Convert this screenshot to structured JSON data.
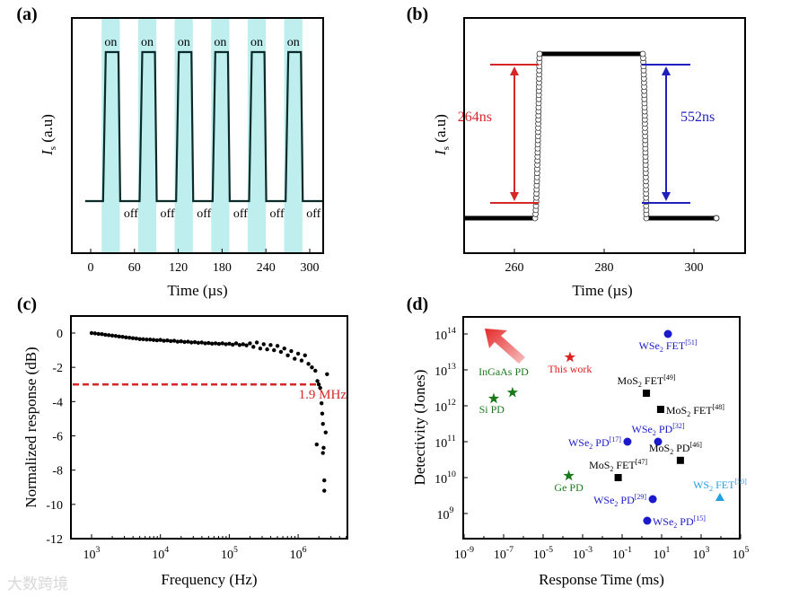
{
  "watermark": "大数跨境",
  "chart_data": [
    {
      "panel": "(a)",
      "type": "line",
      "xlabel": "Time (µs)",
      "ylabel_main": "I",
      "ylabel_sub": "s",
      "ylabel_unit": " (a.u)",
      "xlim": [
        -10,
        320
      ],
      "xticks": [
        0,
        60,
        120,
        180,
        240,
        300
      ],
      "pulses": [
        {
          "on": 17,
          "off": 38
        },
        {
          "on": 67,
          "off": 88
        },
        {
          "on": 117,
          "off": 138
        },
        {
          "on": 167,
          "off": 188
        },
        {
          "on": 217,
          "off": 238
        },
        {
          "on": 267,
          "off": 288
        }
      ],
      "highlight_bands": [
        [
          15,
          40
        ],
        [
          65,
          90
        ],
        [
          115,
          140
        ],
        [
          165,
          190
        ],
        [
          215,
          240
        ],
        [
          265,
          290
        ]
      ],
      "on_label": "on",
      "off_label": "off",
      "band_color": "#bfeeee"
    },
    {
      "panel": "(b)",
      "type": "scatter",
      "xlabel": "Time (µs)",
      "ylabel_main": "I",
      "ylabel_sub": "s",
      "ylabel_unit": " (a.u)",
      "xlim": [
        249.5,
        306
      ],
      "xticks": [
        260,
        280,
        300
      ],
      "rise": {
        "start": 264.6,
        "end": 265.6
      },
      "fall": {
        "start": 288.6,
        "end": 289.4
      },
      "end_time": 305,
      "rise_label": "264ns",
      "fall_label": "552ns",
      "rise_color": "#d62728",
      "fall_color": "#1f1fbf"
    },
    {
      "panel": "(c)",
      "type": "scatter",
      "xlabel": "Frequency (Hz)",
      "ylabel": "Normalized response (dB)",
      "xlim_log10": [
        2.7,
        6.7
      ],
      "ylim": [
        -12,
        1
      ],
      "xticks_exp": [
        3,
        4,
        5,
        6
      ],
      "yticks": [
        0,
        -2,
        -4,
        -6,
        -8,
        -10,
        -12
      ],
      "cutoff_db": -3,
      "cutoff_label": "1.9 MHz",
      "cutoff_color": "#d62728",
      "points": [
        [
          3.0,
          0
        ],
        [
          3.05,
          -0.02
        ],
        [
          3.1,
          -0.05
        ],
        [
          3.15,
          -0.06
        ],
        [
          3.2,
          -0.1
        ],
        [
          3.25,
          -0.12
        ],
        [
          3.3,
          -0.15
        ],
        [
          3.35,
          -0.17
        ],
        [
          3.4,
          -0.2
        ],
        [
          3.45,
          -0.22
        ],
        [
          3.5,
          -0.25
        ],
        [
          3.55,
          -0.27
        ],
        [
          3.6,
          -0.3
        ],
        [
          3.65,
          -0.32
        ],
        [
          3.7,
          -0.35
        ],
        [
          3.75,
          -0.36
        ],
        [
          3.8,
          -0.38
        ],
        [
          3.85,
          -0.38
        ],
        [
          3.9,
          -0.4
        ],
        [
          3.95,
          -0.42
        ],
        [
          4.0,
          -0.4
        ],
        [
          4.05,
          -0.45
        ],
        [
          4.1,
          -0.43
        ],
        [
          4.15,
          -0.47
        ],
        [
          4.2,
          -0.45
        ],
        [
          4.25,
          -0.5
        ],
        [
          4.3,
          -0.48
        ],
        [
          4.35,
          -0.52
        ],
        [
          4.4,
          -0.5
        ],
        [
          4.45,
          -0.55
        ],
        [
          4.5,
          -0.53
        ],
        [
          4.55,
          -0.57
        ],
        [
          4.6,
          -0.55
        ],
        [
          4.65,
          -0.6
        ],
        [
          4.7,
          -0.58
        ],
        [
          4.75,
          -0.62
        ],
        [
          4.8,
          -0.6
        ],
        [
          4.85,
          -0.63
        ],
        [
          4.9,
          -0.6
        ],
        [
          4.95,
          -0.65
        ],
        [
          5.0,
          -0.62
        ],
        [
          5.05,
          -0.68
        ],
        [
          5.1,
          -0.6
        ],
        [
          5.15,
          -0.7
        ],
        [
          5.2,
          -0.65
        ],
        [
          5.25,
          -0.72
        ],
        [
          5.3,
          -0.6
        ],
        [
          5.35,
          -0.8
        ],
        [
          5.4,
          -0.55
        ],
        [
          5.45,
          -0.9
        ],
        [
          5.5,
          -0.65
        ],
        [
          5.55,
          -0.95
        ],
        [
          5.6,
          -0.7
        ],
        [
          5.65,
          -1.0
        ],
        [
          5.7,
          -0.75
        ],
        [
          5.75,
          -1.1
        ],
        [
          5.8,
          -0.9
        ],
        [
          5.85,
          -1.3
        ],
        [
          5.9,
          -1.05
        ],
        [
          5.95,
          -1.5
        ],
        [
          6.0,
          -1.2
        ],
        [
          6.05,
          -1.6
        ],
        [
          6.1,
          -1.3
        ],
        [
          6.15,
          -1.8
        ],
        [
          6.2,
          -2.0
        ],
        [
          6.25,
          -2.2
        ],
        [
          6.28,
          -2.8
        ],
        [
          6.3,
          -3.0
        ],
        [
          6.32,
          -3.2
        ],
        [
          6.34,
          -4.1
        ],
        [
          6.35,
          -4.7
        ],
        [
          6.36,
          -5.3
        ],
        [
          6.27,
          -6.5
        ],
        [
          6.37,
          -6.7
        ],
        [
          6.36,
          -7.0
        ],
        [
          6.38,
          -8.6
        ],
        [
          6.38,
          -9.2
        ],
        [
          6.4,
          -5.8
        ],
        [
          6.42,
          -2.4
        ]
      ]
    },
    {
      "panel": "(d)",
      "type": "scatter",
      "xlabel": "Response Time (ms)",
      "ylabel": "Detectivity (Jones)",
      "xlim_log10": [
        -9,
        5
      ],
      "ylim_log10": [
        8.5,
        14.4
      ],
      "xticks_exp": [
        -9,
        -7,
        -5,
        -3,
        -1,
        1,
        3,
        5
      ],
      "yticks_exp": [
        9,
        10,
        11,
        12,
        13,
        14
      ],
      "points": [
        {
          "name": "Si PD",
          "ref": "",
          "x": -7.5,
          "y": 12.2,
          "marker": "star",
          "color": "#1a7a1a",
          "label_pos": "below"
        },
        {
          "name": "InGaAs PD",
          "ref": "",
          "x": -6.55,
          "y": 12.37,
          "marker": "star",
          "color": "#1a7a1a",
          "label_pos": "above"
        },
        {
          "name": "This work",
          "ref": "",
          "x": -3.64,
          "y": 13.35,
          "marker": "star",
          "color": "#e0201e",
          "label_pos": "below"
        },
        {
          "name": "Ge PD",
          "ref": "",
          "x": -3.7,
          "y": 10.05,
          "marker": "star",
          "color": "#1a7a1a",
          "label_pos": "below"
        },
        {
          "name": "MoS",
          "sub": "2",
          "suffix": " FET",
          "ref": "[47]",
          "x": -1.2,
          "y": 10.0,
          "marker": "square",
          "color": "#000000",
          "label_pos": "above"
        },
        {
          "name": "WSe",
          "sub": "2",
          "suffix": " PD",
          "ref": "[17]",
          "x": -0.73,
          "y": 11.0,
          "marker": "circle",
          "color": "#1a1acc",
          "label_pos": "left"
        },
        {
          "name": "WSe",
          "sub": "2",
          "suffix": " PD",
          "ref": "[32]",
          "x": 0.82,
          "y": 11.0,
          "marker": "circle",
          "color": "#1a1acc",
          "label_pos": "above"
        },
        {
          "name": "MoS",
          "sub": "2",
          "suffix": " FET",
          "ref": "[49]",
          "x": 0.23,
          "y": 12.35,
          "marker": "square",
          "color": "#000000",
          "label_pos": "above"
        },
        {
          "name": "MoS",
          "sub": "2",
          "suffix": " FET",
          "ref": "[48]",
          "x": 0.95,
          "y": 11.9,
          "marker": "square",
          "color": "#000000",
          "label_pos": "right"
        },
        {
          "name": "MoS",
          "sub": "2",
          "suffix": " PD",
          "ref": "[46]",
          "x": 1.95,
          "y": 10.48,
          "marker": "square",
          "color": "#000000",
          "label_pos": "above"
        },
        {
          "name": "WSe",
          "sub": "2",
          "suffix": " FET",
          "ref": "[51]",
          "x": 1.32,
          "y": 14.0,
          "marker": "circle",
          "color": "#1a1acc",
          "label_pos": "below"
        },
        {
          "name": "WSe",
          "sub": "2",
          "suffix": " PD",
          "ref": "[29]",
          "x": 0.55,
          "y": 9.4,
          "marker": "circle",
          "color": "#1a1acc",
          "label_pos": "left"
        },
        {
          "name": "WSe",
          "sub": "2",
          "suffix": " PD",
          "ref": "[15]",
          "x": 0.27,
          "y": 8.8,
          "marker": "circle",
          "color": "#1a1acc",
          "label_pos": "right"
        },
        {
          "name": "WS",
          "sub": "2",
          "suffix": " FET",
          "ref": "[50]",
          "x": 3.95,
          "y": 9.45,
          "marker": "triangle",
          "color": "#22a0e0",
          "label_pos": "above"
        }
      ]
    }
  ]
}
